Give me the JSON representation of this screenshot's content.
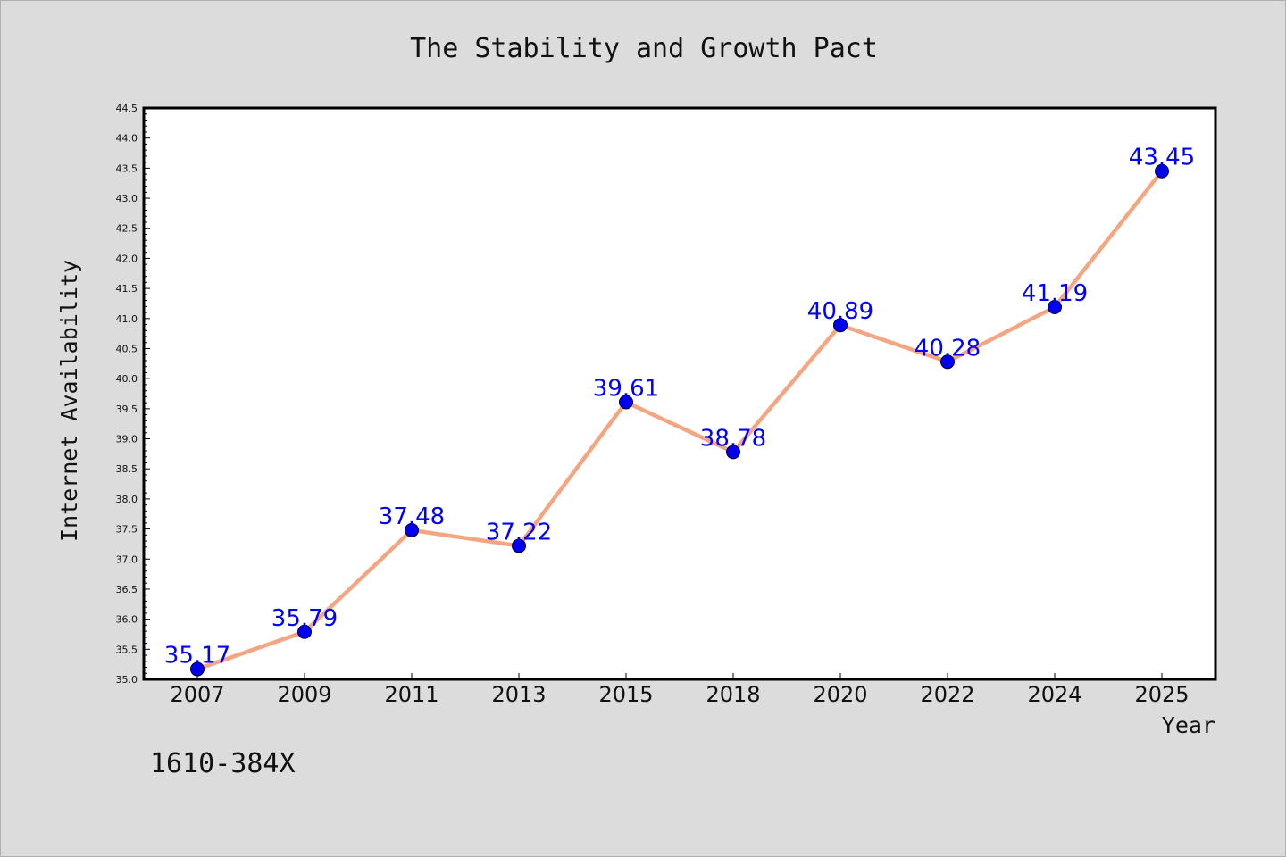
{
  "chart_data": {
    "type": "line",
    "title": "The Stability and Growth Pact",
    "xlabel": "Year",
    "ylabel": "Internet Availability",
    "categories": [
      "2007",
      "2009",
      "2011",
      "2013",
      "2015",
      "2018",
      "2020",
      "2022",
      "2024",
      "2025"
    ],
    "series": [
      {
        "values": [
          35.17,
          35.79,
          37.48,
          37.22,
          39.61,
          38.78,
          40.89,
          40.28,
          41.19,
          43.45
        ],
        "labels": [
          "35.17",
          "35.79",
          "37.48",
          "37.22",
          "39.61",
          "38.78",
          "40.89",
          "40.28",
          "41.19",
          "43.45"
        ],
        "line_color": "#f4a582",
        "marker_color": "#0000ee",
        "label_color": "#0000ff"
      }
    ],
    "ylim": [
      35.0,
      44.5
    ],
    "yticks": [
      "35.0",
      "35.5",
      "36.0",
      "36.5",
      "37.0",
      "37.5",
      "38.0",
      "38.5",
      "39.0",
      "39.5",
      "40.0",
      "40.5",
      "41.0",
      "41.5",
      "42.0",
      "42.5",
      "43.0",
      "43.5",
      "44.0",
      "44.5"
    ],
    "grid": false,
    "legend": "none",
    "background_color": "#dcdcdc",
    "plot_background_color": "#ffffff"
  },
  "footer": {
    "code": "1610-384X"
  }
}
